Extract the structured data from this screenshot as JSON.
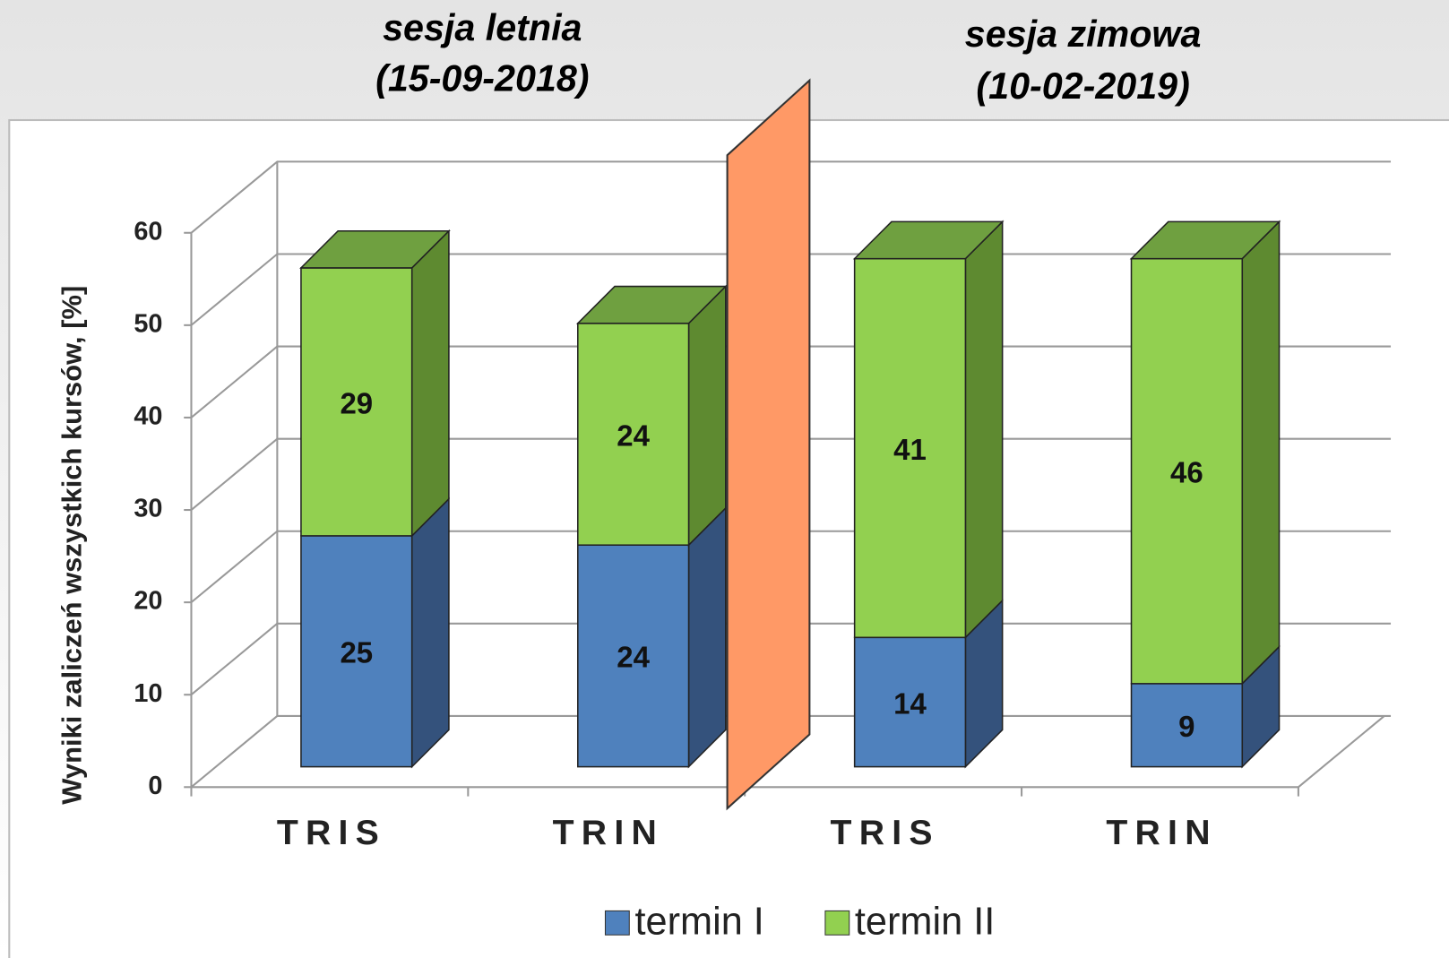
{
  "chart_data": {
    "type": "bar3d-stacked",
    "annotations": [
      "sesja letnia",
      "(15-09-2018)",
      "sesja zimowa",
      "(10-02-2019)"
    ],
    "y_label": "Wyniki zaliczeń wszystkich kursów, [%]",
    "categories": [
      "TRIS",
      "TRIN",
      "TRIS",
      "TRIN"
    ],
    "series": [
      {
        "name": "termin I",
        "color": "#4f81bd",
        "values": [
          25,
          24,
          14,
          9
        ]
      },
      {
        "name": "termin II",
        "color": "#92d050",
        "values": [
          29,
          24,
          41,
          46
        ]
      }
    ],
    "ylim": [
      0,
      60
    ],
    "yticks": [
      0,
      10,
      20,
      30,
      40,
      50,
      60
    ],
    "grid": true,
    "legend": "bottom"
  }
}
